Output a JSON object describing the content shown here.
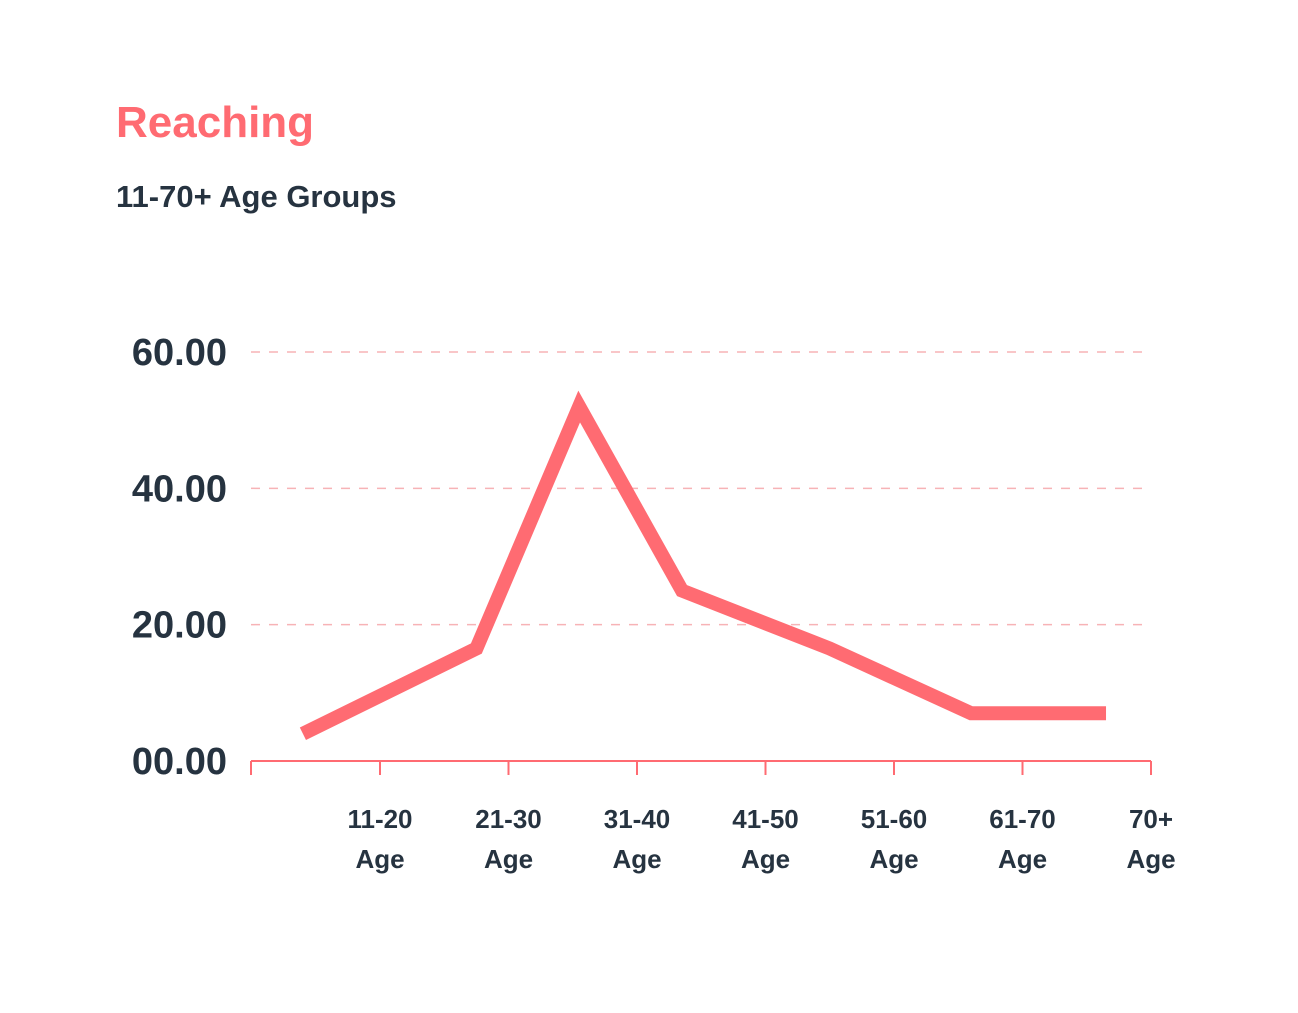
{
  "chart_data": {
    "type": "line",
    "title": "Reaching",
    "subtitle": "11-70+ Age Groups",
    "xlabel": "",
    "ylabel": "",
    "ylim": [
      0,
      60
    ],
    "y_ticks": [
      "00.00",
      "20.00",
      "40.00",
      "60.00"
    ],
    "x_ticks": [
      {
        "line1": "11-20",
        "line2": "Age"
      },
      {
        "line1": "21-30",
        "line2": "Age"
      },
      {
        "line1": "31-40",
        "line2": "Age"
      },
      {
        "line1": "41-50",
        "line2": "Age"
      },
      {
        "line1": "51-60",
        "line2": "Age"
      },
      {
        "line1": "61-70",
        "line2": "Age"
      },
      {
        "line1": "70+",
        "line2": "Age"
      }
    ],
    "grid": "horizontal dashed",
    "series": [
      {
        "color": "#ff6b72",
        "points": [
          {
            "x": 0.4,
            "y": 4
          },
          {
            "x": 1.75,
            "y": 16.5
          },
          {
            "x": 2.55,
            "y": 52
          },
          {
            "x": 3.35,
            "y": 25
          },
          {
            "x": 4.5,
            "y": 16.5
          },
          {
            "x": 5.6,
            "y": 7
          },
          {
            "x": 6.65,
            "y": 7
          }
        ]
      }
    ]
  },
  "colors": {
    "accent": "#ff6b72",
    "text": "#263340",
    "grid": "#f7b3b6",
    "axis": "#ff6b72"
  }
}
